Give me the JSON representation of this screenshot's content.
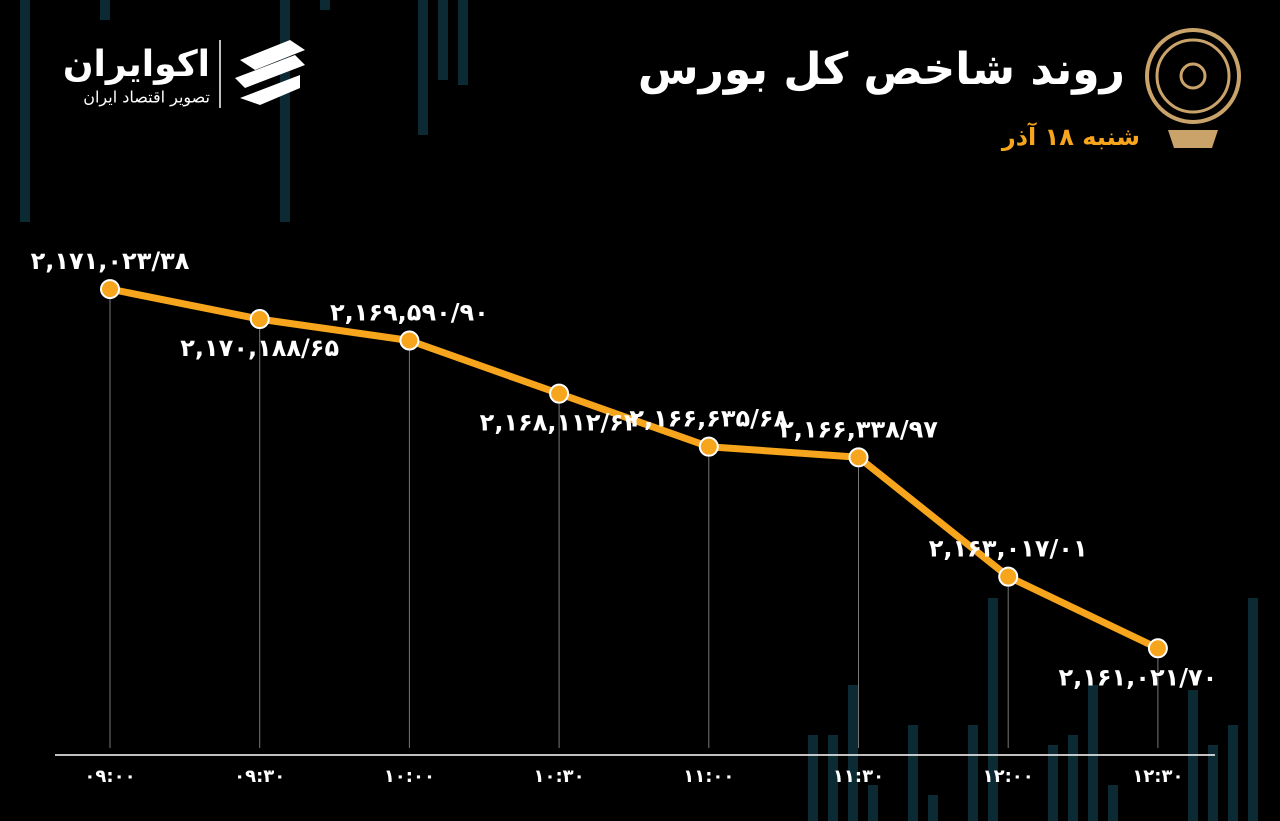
{
  "chart_data": {
    "type": "line",
    "title": "روند شاخص کل بورس",
    "subtitle": "شنبه ۱۸ آذر",
    "brand": "اکوایران",
    "brand_tagline": "تصویر اقتصاد ایران",
    "categories": [
      "۰۹:۰۰",
      "۰۹:۳۰",
      "۱۰:۰۰",
      "۱۰:۳۰",
      "۱۱:۰۰",
      "۱۱:۳۰",
      "۱۲:۰۰",
      "۱۲:۳۰"
    ],
    "values": [
      2171023.38,
      2170188.65,
      2169590.9,
      2168112.62,
      2166635.68,
      2166338.97,
      2163017.01,
      2161021.7
    ],
    "value_labels": [
      "۲,۱۷۱,۰۲۳/۳۸",
      "۲,۱۷۰,۱۸۸/۶۵",
      "۲,۱۶۹,۵۹۰/۹۰",
      "۲,۱۶۸,۱۱۲/۶۲",
      "۲,۱۶۶,۶۳۵/۶۸",
      "۲,۱۶۶,۳۳۸/۹۷",
      "۲,۱۶۳,۰۱۷/۰۱",
      "۲,۱۶۱,۰۲۱/۷۰"
    ],
    "color": "#f7a51c",
    "ylim": [
      2160000,
      2172000
    ]
  }
}
